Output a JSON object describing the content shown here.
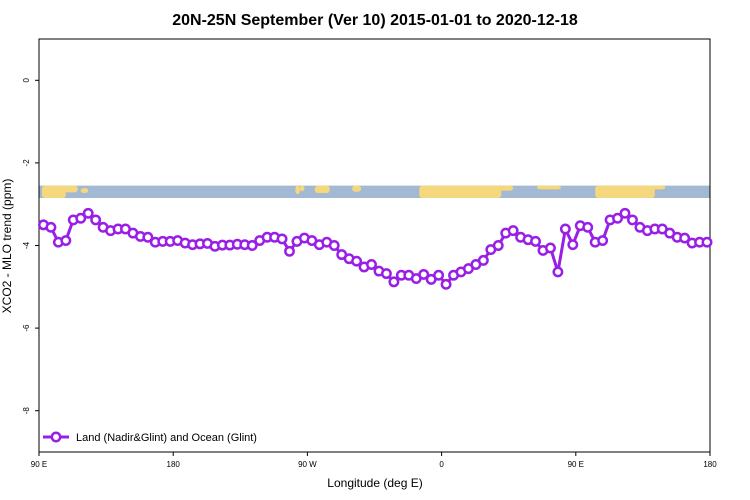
{
  "chart_data": {
    "type": "line",
    "title": "20N-25N September (Ver 10)   2015-01-01 to 2020-12-18",
    "xlabel": "Longitude (deg E)",
    "ylabel": "XCO2 - MLO trend (ppm)",
    "xlim": [
      90,
      540
    ],
    "ylim": [
      -9,
      1
    ],
    "x_ticks": [
      {
        "value": 90,
        "label": "90 E"
      },
      {
        "value": 180,
        "label": "180"
      },
      {
        "value": 270,
        "label": "90 W"
      },
      {
        "value": 360,
        "label": "0"
      },
      {
        "value": 450,
        "label": "90 E"
      },
      {
        "value": 540,
        "label": "180"
      }
    ],
    "y_ticks": [
      {
        "value": 0,
        "label": "0"
      },
      {
        "value": -2,
        "label": "-2"
      },
      {
        "value": -4,
        "label": "-4"
      },
      {
        "value": -6,
        "label": "-6"
      },
      {
        "value": -8,
        "label": "-8"
      }
    ],
    "grid": false,
    "legend_position": "bottom-left",
    "map_strip": {
      "y_range": [
        -2.85,
        -2.55
      ],
      "ocean_color": "#a3b8d2",
      "land_color": "#f5d77e"
    },
    "series": [
      {
        "name": "Land (Nadir&Glint) and Ocean (Glint)",
        "color": "#9a1fe6",
        "x": [
          93,
          98,
          103,
          108,
          113,
          118,
          123,
          128,
          133,
          138,
          143,
          148,
          153,
          158,
          163,
          168,
          173,
          178,
          183,
          188,
          193,
          198,
          203,
          208,
          213,
          218,
          223,
          228,
          233,
          238,
          243,
          248,
          253,
          258,
          263,
          268,
          273,
          278,
          283,
          288,
          293,
          298,
          303,
          308,
          313,
          318,
          323,
          328,
          333,
          338,
          343,
          348,
          353,
          358,
          363,
          368,
          373,
          378,
          383,
          388,
          393,
          398,
          403,
          408,
          413,
          418,
          423,
          428,
          433,
          438,
          443,
          448,
          453,
          458,
          463,
          468,
          473,
          478,
          483,
          488,
          493,
          498,
          503,
          508,
          513,
          518,
          523,
          528,
          533,
          538
        ],
        "y": [
          -3.5,
          -3.56,
          -3.92,
          -3.88,
          -3.38,
          -3.34,
          -3.22,
          -3.38,
          -3.56,
          -3.64,
          -3.6,
          -3.6,
          -3.7,
          -3.78,
          -3.8,
          -3.92,
          -3.9,
          -3.9,
          -3.88,
          -3.94,
          -3.98,
          -3.96,
          -3.95,
          -4.02,
          -3.99,
          -3.99,
          -3.97,
          -3.98,
          -4.0,
          -3.88,
          -3.8,
          -3.8,
          -3.84,
          -4.14,
          -3.9,
          -3.82,
          -3.88,
          -3.98,
          -3.92,
          -4.0,
          -4.22,
          -4.32,
          -4.38,
          -4.52,
          -4.46,
          -4.62,
          -4.68,
          -4.88,
          -4.72,
          -4.72,
          -4.8,
          -4.7,
          -4.82,
          -4.72,
          -4.94,
          -4.72,
          -4.64,
          -4.56,
          -4.46,
          -4.36,
          -4.1,
          -4.0,
          -3.7,
          -3.64,
          -3.8,
          -3.86,
          -3.9,
          -4.12,
          -4.06,
          -4.64,
          -3.6,
          -3.98,
          -3.52,
          -3.56,
          -3.92,
          -3.88,
          -3.38,
          -3.34,
          -3.22,
          -3.38,
          -3.56,
          -3.64,
          -3.6,
          -3.6,
          -3.7,
          -3.8,
          -3.82,
          -3.94,
          -3.92,
          -3.92
        ]
      }
    ]
  }
}
